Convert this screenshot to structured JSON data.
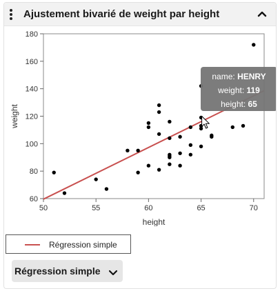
{
  "header": {
    "title": "Ajustement bivarié de weight par height",
    "menu_icon": "more-vertical-icon",
    "collapse_icon": "chevron-up-icon"
  },
  "chart_data": {
    "type": "scatter",
    "xlabel": "height",
    "ylabel": "weight",
    "xlim": [
      50,
      71
    ],
    "ylim": [
      60,
      180
    ],
    "xticks": [
      50,
      55,
      60,
      65,
      70
    ],
    "yticks": [
      60,
      80,
      100,
      120,
      140,
      160,
      180
    ],
    "grid": false,
    "points": [
      {
        "x": 51,
        "y": 79
      },
      {
        "x": 52,
        "y": 64
      },
      {
        "x": 55,
        "y": 74
      },
      {
        "x": 56,
        "y": 67
      },
      {
        "x": 58,
        "y": 95
      },
      {
        "x": 59,
        "y": 79
      },
      {
        "x": 59,
        "y": 95
      },
      {
        "x": 60,
        "y": 84
      },
      {
        "x": 60,
        "y": 112
      },
      {
        "x": 60,
        "y": 115
      },
      {
        "x": 61,
        "y": 81
      },
      {
        "x": 61,
        "y": 107
      },
      {
        "x": 61,
        "y": 123
      },
      {
        "x": 61,
        "y": 128
      },
      {
        "x": 62,
        "y": 85
      },
      {
        "x": 62,
        "y": 90
      },
      {
        "x": 62,
        "y": 91
      },
      {
        "x": 62,
        "y": 92
      },
      {
        "x": 62,
        "y": 104
      },
      {
        "x": 62,
        "y": 116
      },
      {
        "x": 63,
        "y": 84
      },
      {
        "x": 63,
        "y": 93
      },
      {
        "x": 63,
        "y": 105
      },
      {
        "x": 64,
        "y": 92
      },
      {
        "x": 64,
        "y": 99
      },
      {
        "x": 64,
        "y": 112
      },
      {
        "x": 65,
        "y": 98
      },
      {
        "x": 65,
        "y": 111
      },
      {
        "x": 65,
        "y": 113
      },
      {
        "x": 65,
        "y": 119
      },
      {
        "x": 65,
        "y": 142
      },
      {
        "x": 66,
        "y": 105
      },
      {
        "x": 66,
        "y": 106
      },
      {
        "x": 68,
        "y": 112
      },
      {
        "x": 69,
        "y": 113
      },
      {
        "x": 70,
        "y": 172
      }
    ],
    "fit_line": {
      "name": "Régression simple",
      "x": [
        50,
        71
      ],
      "y": [
        59.6,
        138.6
      ],
      "color": "#c8504f"
    },
    "tooltip": {
      "rows": [
        {
          "key": "name:",
          "value": "HENRY"
        },
        {
          "key": "weight:",
          "value": "119"
        },
        {
          "key": "height:",
          "value": "65"
        }
      ],
      "point": {
        "x": 65,
        "y": 119
      }
    }
  },
  "legend": {
    "items": [
      {
        "label": "Régression simple",
        "color": "#c8504f"
      }
    ]
  },
  "fit_menu": {
    "label": "Régression simple",
    "icon": "chevron-down-icon"
  }
}
